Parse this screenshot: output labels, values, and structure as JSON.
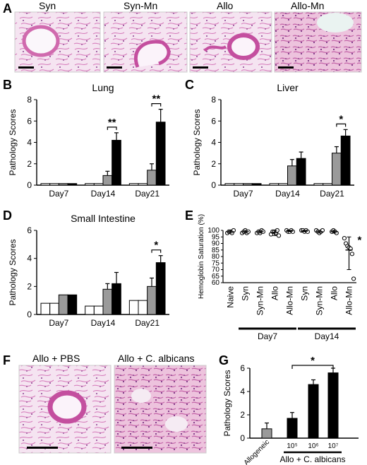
{
  "panels": {
    "A": "A",
    "B": "B",
    "C": "C",
    "D": "D",
    "E": "E",
    "F": "F",
    "G": "G"
  },
  "histology_A": [
    "Syn",
    "Syn-Mn",
    "Allo",
    "Allo-Mn"
  ],
  "histology_F": [
    "Allo + PBS",
    "Allo + C. albicans"
  ],
  "colors": {
    "bar_white": "#ffffff",
    "bar_gray": "#9a9a9a",
    "bar_black": "#000000",
    "tissue_pink": "#e8a6cf",
    "tissue_bg": "#f4e6f2"
  },
  "chart_data": [
    {
      "id": "B",
      "type": "bar",
      "title": "Lung",
      "ylabel": "Pathology Scores",
      "ylim": [
        0,
        8
      ],
      "yticks": [
        0,
        2,
        4,
        6,
        8
      ],
      "categories": [
        "Day7",
        "Day14",
        "Day21"
      ],
      "series": [
        {
          "values": [
            0.15,
            0.15,
            0.15
          ],
          "errors": [
            0,
            0,
            0
          ]
        },
        {
          "values": [
            0.15,
            0.15,
            0.15
          ],
          "errors": [
            0,
            0,
            0
          ]
        },
        {
          "values": [
            0.15,
            0.9,
            1.4
          ],
          "errors": [
            0,
            0.4,
            0.6
          ]
        },
        {
          "values": [
            0.15,
            4.2,
            5.9
          ],
          "errors": [
            0,
            0.7,
            1.2
          ]
        }
      ],
      "significance": [
        {
          "category": "Day14",
          "label": "**"
        },
        {
          "category": "Day21",
          "label": "**"
        }
      ]
    },
    {
      "id": "C",
      "type": "bar",
      "title": "Liver",
      "ylabel": "Pathology Scores",
      "ylim": [
        0,
        8
      ],
      "yticks": [
        0,
        2,
        4,
        6,
        8
      ],
      "categories": [
        "Day7",
        "Day14",
        "Day21"
      ],
      "series": [
        {
          "values": [
            0.15,
            0.15,
            0.15
          ],
          "errors": [
            0,
            0,
            0
          ]
        },
        {
          "values": [
            0.15,
            0.15,
            0.15
          ],
          "errors": [
            0,
            0,
            0
          ]
        },
        {
          "values": [
            0.15,
            1.8,
            3.0
          ],
          "errors": [
            0,
            0.6,
            0.6
          ]
        },
        {
          "values": [
            0.15,
            2.5,
            4.6
          ],
          "errors": [
            0,
            0.6,
            0.6
          ]
        }
      ],
      "significance": [
        {
          "category": "Day21",
          "label": "*"
        }
      ]
    },
    {
      "id": "D",
      "type": "bar",
      "title": "Small Intestine",
      "ylabel": "Pathology Scores",
      "ylim": [
        0,
        6
      ],
      "yticks": [
        0,
        2,
        4,
        6
      ],
      "categories": [
        "Day7",
        "Day14",
        "Day21"
      ],
      "series": [
        {
          "values": [
            0.8,
            0.6,
            1.0
          ],
          "errors": [
            0,
            0,
            0
          ]
        },
        {
          "values": [
            0.8,
            0.6,
            1.0
          ],
          "errors": [
            0,
            0,
            0
          ]
        },
        {
          "values": [
            1.4,
            1.8,
            2.0
          ],
          "errors": [
            0,
            0.4,
            0.6
          ]
        },
        {
          "values": [
            1.4,
            2.2,
            3.7
          ],
          "errors": [
            0,
            0.8,
            0.5
          ]
        }
      ],
      "significance": [
        {
          "category": "Day21",
          "label": "*"
        }
      ]
    },
    {
      "id": "E",
      "type": "scatter",
      "ylabel": "Hemoglobin Saturation (%)",
      "ylim": [
        60,
        100
      ],
      "yticks": [
        60,
        65,
        70,
        75,
        80,
        85,
        90,
        95,
        100
      ],
      "categories": [
        "Naive",
        "Syn",
        "Syn-Mn",
        "Allo",
        "Allo-Mn",
        "Syn",
        "Syn-Mn",
        "Allo",
        "Allo-Mn"
      ],
      "groups": [
        {
          "label": "Day7",
          "span": [
            1,
            4
          ]
        },
        {
          "label": "Day14",
          "span": [
            5,
            8
          ]
        }
      ],
      "points": [
        [
          98,
          99,
          99,
          98,
          100
        ],
        [
          98,
          99,
          100,
          98,
          99
        ],
        [
          98,
          99,
          98,
          100,
          99
        ],
        [
          97,
          99,
          99,
          98,
          100,
          96
        ],
        [
          100,
          99,
          99,
          100,
          99
        ],
        [
          100,
          100,
          99,
          100,
          99
        ],
        [
          100,
          99,
          98,
          99,
          100
        ],
        [
          99,
          100,
          99,
          98
        ],
        [
          94,
          90,
          88,
          87,
          86,
          82,
          63
        ]
      ],
      "means": [
        99,
        99,
        99,
        98.5,
        99.5,
        99.5,
        99,
        99,
        85
      ],
      "sd_low_high": [
        [
          98,
          100
        ],
        [
          98,
          100
        ],
        [
          98,
          100
        ],
        [
          96,
          100
        ],
        [
          99,
          100
        ],
        [
          99,
          100
        ],
        [
          98,
          100
        ],
        [
          98,
          100
        ],
        [
          70,
          95
        ]
      ],
      "significance": [
        {
          "category_index": 8,
          "label": "*"
        }
      ]
    },
    {
      "id": "G",
      "type": "bar",
      "ylabel": "Pathology Scores",
      "ylim": [
        0,
        6
      ],
      "yticks": [
        0,
        2,
        4,
        6
      ],
      "categories": [
        "Allogeneic",
        "10⁵",
        "10⁶",
        "10⁷"
      ],
      "group_label": "Allo + C. albicans",
      "values": [
        0.8,
        1.7,
        4.6,
        5.6
      ],
      "errors": [
        0.5,
        0.5,
        0.4,
        0.4
      ],
      "colors": [
        "#9a9a9a",
        "#000000",
        "#000000",
        "#000000"
      ],
      "significance": [
        {
          "from": 1,
          "to": 3,
          "label": "*"
        }
      ]
    }
  ]
}
